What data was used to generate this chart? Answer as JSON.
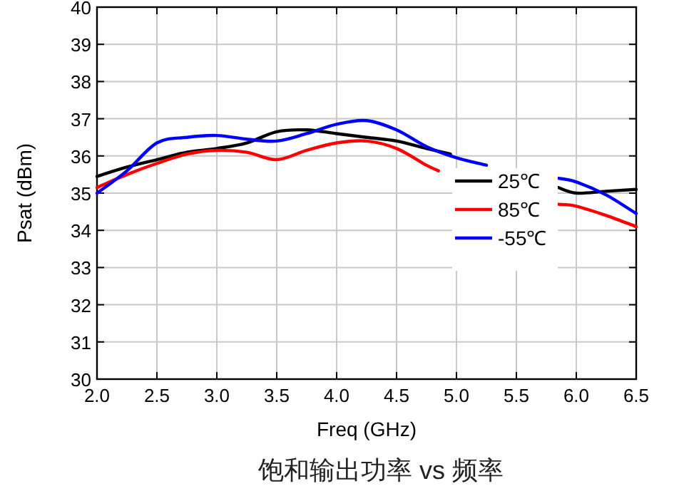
{
  "chart_data": {
    "type": "line",
    "xlabel": "Freq (GHz)",
    "ylabel": "Psat (dBm)",
    "annotations": [
      "饱和输出功率 vs 频率"
    ],
    "xlim": [
      2.0,
      6.5
    ],
    "xticks": [
      {
        "value": 2,
        "label": "2.0"
      },
      {
        "value": 2.5,
        "label": "2.5"
      },
      {
        "value": 3,
        "label": "3.0"
      },
      {
        "value": 3.5,
        "label": "3.5"
      },
      {
        "value": 4,
        "label": "4.0"
      },
      {
        "value": 4.5,
        "label": "4.5"
      },
      {
        "value": 5,
        "label": "5.0"
      },
      {
        "value": 5.5,
        "label": "5.5"
      },
      {
        "value": 6,
        "label": "6.0"
      },
      {
        "value": 6.5,
        "label": "6.5"
      }
    ],
    "ylim": [
      30,
      40
    ],
    "yticks": [
      30,
      31,
      32,
      33,
      34,
      35,
      36,
      37,
      38,
      39,
      40
    ],
    "grid": true,
    "legend": "right",
    "line_style": "solid",
    "marker": "none",
    "series": [
      {
        "name": "25℃",
        "color": "#000000",
        "x": [
          2,
          2.25,
          2.5,
          2.75,
          3,
          3.25,
          3.5,
          3.75,
          4,
          4.25,
          4.5,
          4.75,
          4.95,
          5.4,
          5.85,
          6,
          6.25,
          6.5
        ],
        "values": [
          35.45,
          35.7,
          35.9,
          36.1,
          36.2,
          36.35,
          36.65,
          36.7,
          36.6,
          36.5,
          36.4,
          36.2,
          36.05,
          null,
          35.15,
          35.0,
          35.05,
          35.1
        ]
      },
      {
        "name": "85℃",
        "color": "#ff0000",
        "x": [
          2,
          2.25,
          2.5,
          2.75,
          3,
          3.25,
          3.5,
          3.75,
          4,
          4.25,
          4.5,
          4.75,
          4.85,
          5.4,
          5.85,
          6,
          6.25,
          6.5
        ],
        "values": [
          35.15,
          35.5,
          35.8,
          36.05,
          36.15,
          36.1,
          35.9,
          36.15,
          36.35,
          36.4,
          36.2,
          35.75,
          35.6,
          null,
          34.7,
          34.65,
          34.4,
          34.1
        ]
      },
      {
        "name": "-55℃",
        "color": "#0000ff",
        "x": [
          2,
          2.25,
          2.5,
          2.75,
          3,
          3.25,
          3.5,
          3.75,
          4,
          4.25,
          4.5,
          4.75,
          5,
          5.25,
          5.5,
          5.85,
          6,
          6.25,
          6.5
        ],
        "values": [
          35.0,
          35.6,
          36.35,
          36.5,
          36.55,
          36.45,
          36.4,
          36.6,
          36.85,
          36.95,
          36.7,
          36.25,
          35.95,
          35.75,
          null,
          35.4,
          35.3,
          34.95,
          34.45
        ]
      }
    ]
  }
}
